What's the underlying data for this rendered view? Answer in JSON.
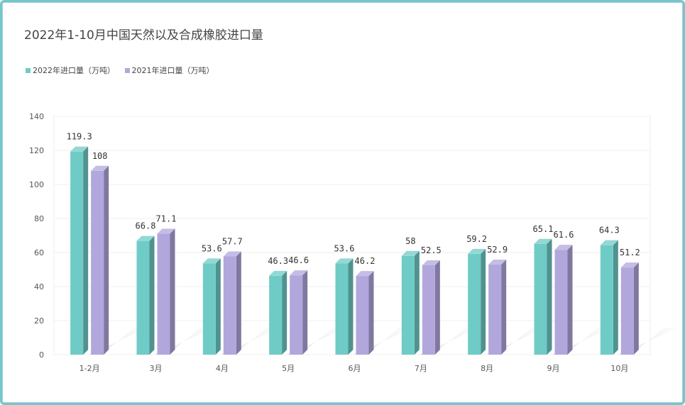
{
  "chart_data": {
    "type": "bar",
    "title": "2022年1-10月中国天然以及合成橡胶进口量",
    "categories": [
      "1-2月",
      "3月",
      "4月",
      "5月",
      "6月",
      "7月",
      "8月",
      "9月",
      "10月"
    ],
    "series": [
      {
        "name": "2022年进口量（万吨）",
        "values": [
          119.3,
          66.8,
          53.6,
          46.3,
          53.6,
          58,
          59.2,
          65.1,
          64.3
        ],
        "labels": [
          "119.3",
          "66.8",
          "53.6",
          "46.3",
          "53.6",
          "58",
          "59.2",
          "65.1",
          "64.3"
        ],
        "color": "#6fcbc6"
      },
      {
        "name": "2021年进口量（万吨）",
        "values": [
          108,
          71.1,
          57.7,
          46.6,
          46.2,
          52.5,
          52.9,
          61.6,
          51.2
        ],
        "labels": [
          "108",
          "71.1",
          "57.7",
          "46.6",
          "46.2",
          "52.5",
          "52.9",
          "61.6",
          "51.2"
        ],
        "color": "#b2a7dc"
      }
    ],
    "yticks": [
      "0",
      "20",
      "40",
      "60",
      "80",
      "100",
      "120",
      "140"
    ],
    "ylim": [
      0,
      140
    ],
    "grid": true,
    "legend_position": "top-left"
  }
}
